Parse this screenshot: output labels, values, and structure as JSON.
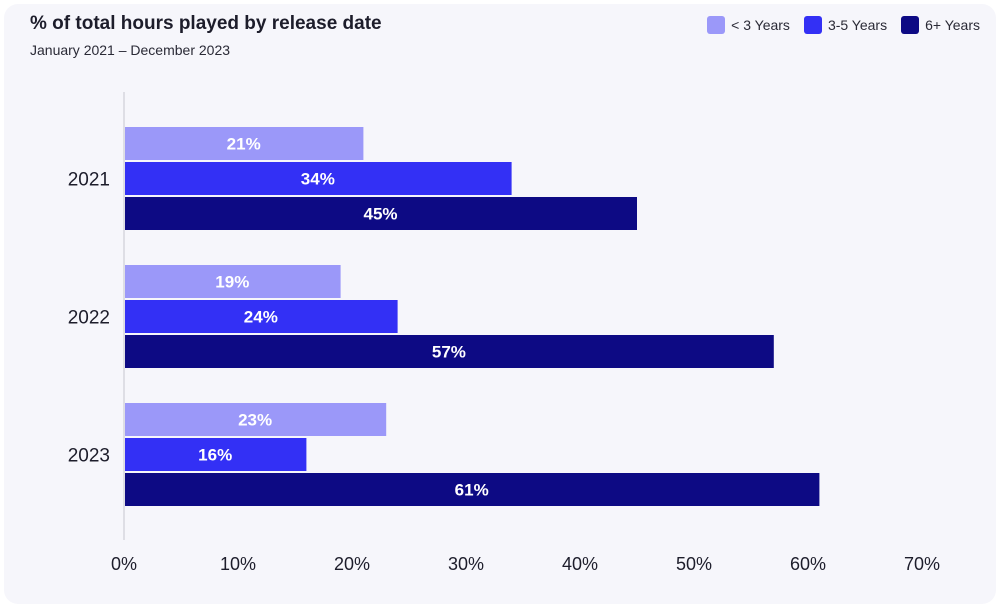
{
  "chart_data": {
    "type": "bar",
    "orientation": "horizontal",
    "title": "% of total hours played by release date",
    "subtitle": "January 2021 – December 2023",
    "categories": [
      "2021",
      "2022",
      "2023"
    ],
    "series": [
      {
        "name": "< 3 Years",
        "values": [
          21,
          19,
          23
        ],
        "labels": [
          "21%",
          "19%",
          "23%"
        ],
        "color": "#9b98f9"
      },
      {
        "name": "3-5 Years",
        "values": [
          34,
          24,
          16
        ],
        "labels": [
          "34%",
          "24%",
          "16%"
        ],
        "color": "#3330f5"
      },
      {
        "name": "6+ Years",
        "values": [
          45,
          57,
          61
        ],
        "labels": [
          "45%",
          "57%",
          "61%"
        ],
        "color": "#0d0a84"
      }
    ],
    "xlim": [
      0,
      70
    ],
    "xticks": [
      0,
      10,
      20,
      30,
      40,
      50,
      60,
      70
    ],
    "xtick_labels": [
      "0%",
      "10%",
      "20%",
      "30%",
      "40%",
      "50%",
      "60%",
      "70%"
    ],
    "grid": false,
    "legend": "top-right"
  }
}
